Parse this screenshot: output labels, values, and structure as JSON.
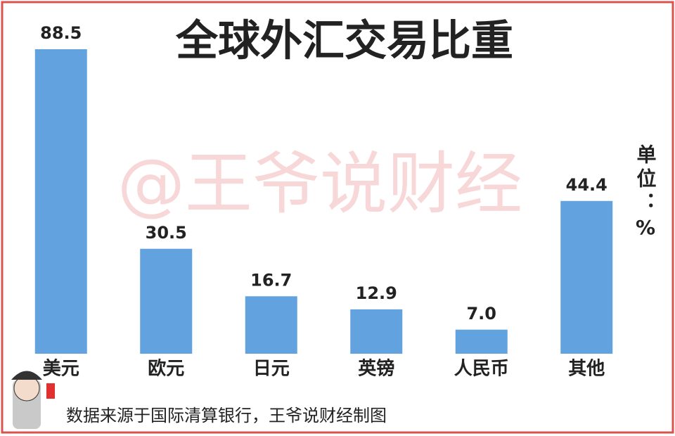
{
  "chart_data": {
    "type": "bar",
    "title": "全球外汇交易比重",
    "categories": [
      "美元",
      "欧元",
      "日元",
      "英镑",
      "人民币",
      "其他"
    ],
    "values": [
      88.5,
      30.5,
      16.7,
      12.9,
      7.0,
      44.4
    ],
    "value_labels": [
      "88.5",
      "30.5",
      "16.7",
      "12.9",
      "7.0",
      "44.4"
    ],
    "color": "#62a3df",
    "ylim": [
      0,
      88.5
    ],
    "unit": "单位：%",
    "watermark": "@王爷说财经",
    "source": "数据来源于国际清算银行，王爷说财经制图"
  }
}
